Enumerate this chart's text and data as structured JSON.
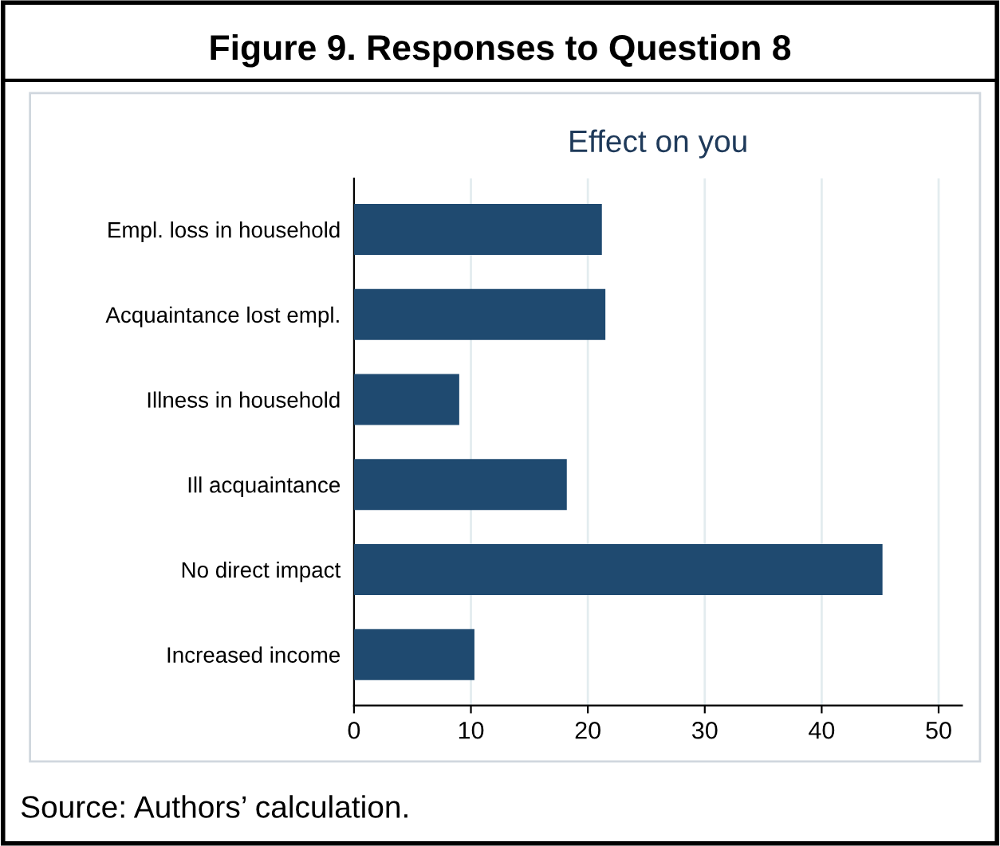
{
  "chart_data": {
    "type": "bar",
    "orientation": "horizontal",
    "title": "Figure 9. Responses to Question 8",
    "subtitle": "Effect on you",
    "categories": [
      "Empl. loss in household",
      "Acquaintance lost empl.",
      "Illness in household",
      "Ill acquaintance",
      "No direct impact",
      "Increased income"
    ],
    "values": [
      21.2,
      21.5,
      9.0,
      18.2,
      45.2,
      10.3
    ],
    "color": "#1f4a70",
    "xlim": [
      0,
      52
    ],
    "xticks": [
      0,
      10,
      20,
      30,
      40,
      50
    ],
    "grid": "x",
    "annotations": [
      "Source: Authors’ calculation."
    ]
  }
}
